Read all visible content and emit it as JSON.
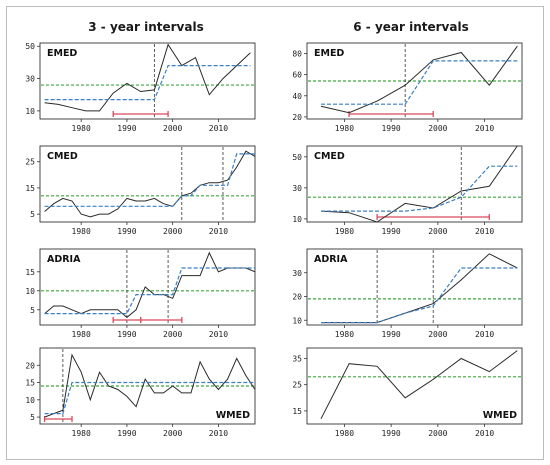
{
  "column_titles": [
    "3 - year intervals",
    "6 - year intervals"
  ],
  "colors": {
    "observed": "#2a2a2a",
    "mean_line": "#3da63d",
    "step_fit": "#3a7fc4",
    "change_point": "#333333",
    "interval": "#d94a5a"
  },
  "chart_data": [
    {
      "type": "line",
      "label": "EMED",
      "column": 0,
      "row": 0,
      "label_position": "top-left",
      "xlim": [
        1971,
        2018
      ],
      "ylim": [
        5,
        52
      ],
      "x_ticks": [
        1980,
        1990,
        2000,
        2010
      ],
      "y_ticks": [
        10,
        30,
        50
      ],
      "x": [
        1972,
        1975,
        1978,
        1981,
        1984,
        1987,
        1990,
        1993,
        1996,
        1999,
        2002,
        2005,
        2008,
        2011,
        2014,
        2017
      ],
      "series": [
        {
          "role": "observed",
          "values": [
            15,
            14,
            12,
            10,
            10,
            21,
            27,
            22,
            23,
            51,
            38,
            43,
            20,
            30,
            38,
            46
          ]
        },
        {
          "role": "step-fit",
          "values": [
            17,
            17,
            17,
            17,
            17,
            17,
            17,
            17,
            17,
            38,
            38,
            38,
            38,
            38,
            38,
            38
          ]
        }
      ],
      "mean": 26,
      "change_points": [
        1996
      ],
      "intervals": [
        {
          "from": 1987,
          "to": 1999
        }
      ]
    },
    {
      "type": "line",
      "label": "EMED",
      "column": 1,
      "row": 0,
      "label_position": "top-left",
      "xlim": [
        1972,
        2018
      ],
      "ylim": [
        18,
        90
      ],
      "x_ticks": [
        1980,
        1990,
        2000,
        2010
      ],
      "y_ticks": [
        20,
        40,
        60,
        80
      ],
      "x": [
        1975,
        1981,
        1987,
        1993,
        1999,
        2005,
        2011,
        2017
      ],
      "series": [
        {
          "role": "observed",
          "values": [
            30,
            24,
            35,
            50,
            74,
            81,
            50,
            87
          ]
        },
        {
          "role": "step-fit",
          "values": [
            32,
            32,
            32,
            32,
            73,
            73,
            73,
            73
          ]
        }
      ],
      "mean": 54,
      "change_points": [
        1993
      ],
      "intervals": [
        {
          "from": 1981,
          "to": 1999
        }
      ]
    },
    {
      "type": "line",
      "label": "CMED",
      "column": 0,
      "row": 1,
      "label_position": "top-left",
      "xlim": [
        1971,
        2018
      ],
      "ylim": [
        2,
        31
      ],
      "x_ticks": [
        1980,
        1990,
        2000,
        2010
      ],
      "y_ticks": [
        5,
        15,
        25
      ],
      "x": [
        1972,
        1974,
        1976,
        1978,
        1980,
        1982,
        1984,
        1986,
        1988,
        1990,
        1992,
        1994,
        1996,
        1998,
        2000,
        2002,
        2004,
        2006,
        2008,
        2010,
        2012,
        2014,
        2016,
        2018
      ],
      "series": [
        {
          "role": "observed",
          "values": [
            6,
            9,
            11,
            10,
            5,
            4,
            5,
            5,
            7,
            11,
            10,
            10,
            11,
            9,
            8,
            12,
            13,
            16,
            17,
            17,
            18,
            23,
            29,
            27
          ]
        },
        {
          "role": "step-fit",
          "values": [
            8,
            8,
            8,
            8,
            8,
            8,
            8,
            8,
            8,
            8,
            8,
            8,
            8,
            8,
            8,
            12,
            12,
            16,
            16,
            16,
            16,
            28,
            28,
            28
          ]
        }
      ],
      "mean": 12,
      "change_points": [
        2002,
        2011
      ]
    },
    {
      "type": "line",
      "label": "CMED",
      "column": 1,
      "row": 1,
      "label_position": "top-left",
      "xlim": [
        1972,
        2018
      ],
      "ylim": [
        8,
        57
      ],
      "x_ticks": [
        1980,
        1990,
        2000,
        2010
      ],
      "y_ticks": [
        10,
        30,
        50
      ],
      "x": [
        1975,
        1981,
        1987,
        1993,
        1999,
        2005,
        2011,
        2017
      ],
      "series": [
        {
          "role": "observed",
          "values": [
            15,
            14,
            8,
            20,
            17,
            28,
            31,
            57
          ]
        },
        {
          "role": "step-fit",
          "values": [
            15,
            15,
            15,
            15,
            17,
            24,
            44,
            44
          ]
        }
      ],
      "mean": 24,
      "change_points": [
        2005
      ],
      "intervals": [
        {
          "from": 1987,
          "to": 2011
        }
      ]
    },
    {
      "type": "line",
      "label": "ADRIA",
      "column": 0,
      "row": 2,
      "label_position": "top-left",
      "xlim": [
        1971,
        2018
      ],
      "ylim": [
        1,
        21
      ],
      "x_ticks": [
        1980,
        1990,
        2000,
        2010
      ],
      "y_ticks": [
        5,
        10,
        15
      ],
      "x": [
        1972,
        1974,
        1976,
        1978,
        1980,
        1982,
        1984,
        1986,
        1988,
        1990,
        1992,
        1994,
        1996,
        1998,
        2000,
        2002,
        2004,
        2006,
        2008,
        2010,
        2012,
        2014,
        2016,
        2018
      ],
      "series": [
        {
          "role": "observed",
          "values": [
            4,
            6,
            6,
            5,
            4,
            5,
            5,
            5,
            5,
            3,
            5,
            11,
            9,
            9,
            8,
            14,
            14,
            14,
            20,
            15,
            16,
            16,
            16,
            15
          ]
        },
        {
          "role": "step-fit",
          "values": [
            4,
            4,
            4,
            4,
            4,
            4,
            4,
            4,
            4,
            4,
            9,
            9,
            9,
            9,
            9,
            16,
            16,
            16,
            16,
            16,
            16,
            16,
            16,
            16
          ]
        }
      ],
      "mean": 10,
      "change_points": [
        1990,
        1999
      ],
      "intervals": [
        {
          "from": 1987,
          "to": 1993
        },
        {
          "from": 1993,
          "to": 2002
        }
      ]
    },
    {
      "type": "line",
      "label": "ADRIA",
      "column": 1,
      "row": 2,
      "label_position": "top-left",
      "xlim": [
        1972,
        2018
      ],
      "ylim": [
        8,
        40
      ],
      "x_ticks": [
        1980,
        1990,
        2000,
        2010
      ],
      "y_ticks": [
        10,
        20,
        30
      ],
      "x": [
        1975,
        1981,
        1987,
        1993,
        1999,
        2005,
        2011,
        2017
      ],
      "series": [
        {
          "role": "observed",
          "values": [
            9,
            9,
            9,
            13,
            17,
            27,
            38,
            32
          ]
        },
        {
          "role": "step-fit",
          "values": [
            9,
            9,
            9,
            13,
            16,
            32,
            32,
            32
          ]
        }
      ],
      "mean": 19,
      "change_points": [
        1987,
        1999
      ]
    },
    {
      "type": "line",
      "label": "WMED",
      "column": 0,
      "row": 3,
      "label_position": "bottom-right",
      "xlim": [
        1971,
        2018
      ],
      "ylim": [
        3,
        25
      ],
      "x_ticks": [
        1980,
        1990,
        2000,
        2010
      ],
      "y_ticks": [
        5,
        10,
        15,
        20
      ],
      "x": [
        1972,
        1974,
        1976,
        1978,
        1980,
        1982,
        1984,
        1986,
        1988,
        1990,
        1992,
        1994,
        1996,
        1998,
        2000,
        2002,
        2004,
        2006,
        2008,
        2010,
        2012,
        2014,
        2016,
        2018
      ],
      "series": [
        {
          "role": "observed",
          "values": [
            5,
            6,
            7,
            23,
            18,
            10,
            18,
            14,
            13,
            11,
            8,
            16,
            12,
            12,
            14,
            12,
            12,
            21,
            16,
            13,
            16,
            22,
            17,
            13
          ]
        },
        {
          "role": "step-fit",
          "values": [
            6,
            6,
            6,
            15,
            15,
            15,
            15,
            15,
            15,
            15,
            15,
            15,
            15,
            15,
            15,
            15,
            15,
            15,
            15,
            15,
            15,
            15,
            15,
            15
          ]
        }
      ],
      "mean": 14,
      "change_points": [
        1976
      ],
      "intervals": [
        {
          "from": 1972,
          "to": 1978
        }
      ]
    },
    {
      "type": "line",
      "label": "WMED",
      "column": 1,
      "row": 3,
      "label_position": "bottom-right",
      "xlim": [
        1972,
        2018
      ],
      "ylim": [
        10,
        39
      ],
      "x_ticks": [
        1980,
        1990,
        2000,
        2010
      ],
      "y_ticks": [
        15,
        25,
        35
      ],
      "x": [
        1975,
        1981,
        1987,
        1993,
        1999,
        2005,
        2011,
        2017
      ],
      "series": [
        {
          "role": "observed",
          "values": [
            12,
            33,
            32,
            20,
            27,
            35,
            30,
            38
          ]
        }
      ],
      "mean": 28
    }
  ]
}
